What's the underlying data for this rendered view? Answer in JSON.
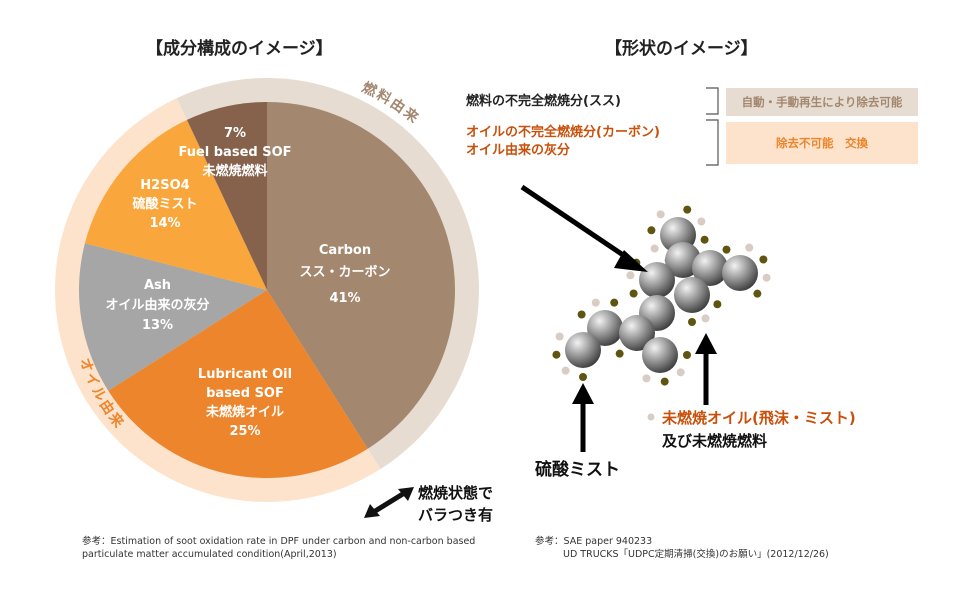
{
  "left_title": "【成分構成のイメージ】",
  "right_title": "【形状のイメージ】",
  "chart_data": {
    "type": "pie",
    "title": "【成分構成のイメージ】",
    "start": "top",
    "direction": "clockwise",
    "slices": [
      {
        "label": "Carbon",
        "label_ja": "スス・カーボン",
        "value": 41,
        "value_label": "41%",
        "color": "#a3876f"
      },
      {
        "label": "Lubricant Oil based SOF",
        "label_line1": "Lubricant Oil",
        "label_line2": "based SOF",
        "label_ja": "未燃焼オイル",
        "value": 25,
        "value_label": "25%",
        "color": "#ed852c"
      },
      {
        "label": "Ash",
        "label_ja": "オイル由来の灰分",
        "value": 13,
        "value_label": "13%",
        "color": "#a6a6a6"
      },
      {
        "label": "H2SO4",
        "label_ja": "硫酸ミスト",
        "value": 14,
        "value_label": "14%",
        "color": "#f9a73c"
      },
      {
        "label": "Fuel based SOF",
        "label_ja": "未燃焼燃料",
        "value": 7,
        "value_label": "7%",
        "color": "#86624d"
      }
    ],
    "rings": [
      {
        "label": "燃料由来",
        "color": "#e6dcd2",
        "text_color": "#a3876f"
      },
      {
        "label": "オイル由来",
        "color": "#fde3cc",
        "text_color": "#ed852c"
      }
    ]
  },
  "variation_note": {
    "line1": "燃焼状態で",
    "line2": "バラつき有"
  },
  "left_reference": {
    "line1": "参考：Estimation of soot oxidation rate in DPF under carbon and non-carbon based",
    "line2": "particulate matter accumulated condition(April,2013)"
  },
  "legend": {
    "fuel_soot": "燃料の不完全燃焼分(スス)",
    "oil_carbon": "オイルの不完全燃焼分(カーボン)",
    "oil_ash": "オイル由来の灰分",
    "removable": "自動・手動再生により除去可能",
    "not_removable": "除去不可能　交換",
    "colors": {
      "fuel_box": "#e6dcd2",
      "oil_box": "#fde3cc",
      "oil_text": "#c8500a"
    }
  },
  "diagram": {
    "sulfuric_mist": "硫酸ミスト",
    "oil_mist": "未燃焼オイル(飛沫・ミスト)",
    "unburned_fuel": "及び未燃焼燃料"
  },
  "right_reference": {
    "line1": "参考：SAE paper 940233",
    "line2": "UD TRUCKS「UDPC定期清掃(交換)のお願い」(2012/12/26)"
  }
}
